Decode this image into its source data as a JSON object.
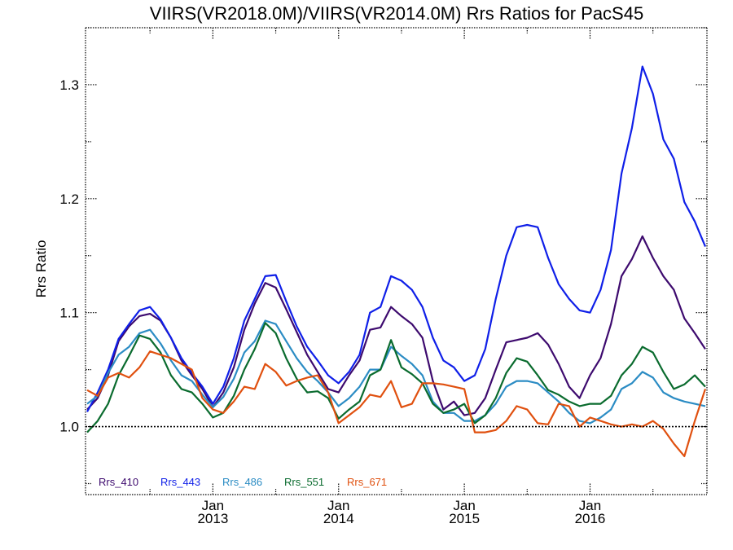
{
  "chart_data": {
    "type": "line",
    "title": "VIIRS(VR2018.0M)/VIIRS(VR2014.0M)  Rrs Ratios for PacS45",
    "xlabel": "",
    "ylabel": "Rrs Ratio",
    "xlim": [
      "2012-01",
      "2016-12"
    ],
    "ylim": [
      0.95,
      1.35
    ],
    "reference_line": 1.0,
    "grid": false,
    "legend_position": "bottom-left",
    "y_ticks": [
      1.0,
      1.1,
      1.2,
      1.3
    ],
    "y_tick_labels": [
      "1.0",
      "1.1",
      "1.2",
      "1.3"
    ],
    "x_ticks": [
      {
        "month": "2013-01",
        "line1": "Jan",
        "line2": "2013"
      },
      {
        "month": "2014-01",
        "line1": "Jan",
        "line2": "2014"
      },
      {
        "month": "2015-01",
        "line1": "Jan",
        "line2": "2015"
      },
      {
        "month": "2016-01",
        "line1": "Jan",
        "line2": "2016"
      }
    ],
    "x": [
      "2012-01",
      "2012-02",
      "2012-03",
      "2012-04",
      "2012-05",
      "2012-06",
      "2012-07",
      "2012-08",
      "2012-09",
      "2012-10",
      "2012-11",
      "2012-12",
      "2013-01",
      "2013-02",
      "2013-03",
      "2013-04",
      "2013-05",
      "2013-06",
      "2013-07",
      "2013-08",
      "2013-09",
      "2013-10",
      "2013-11",
      "2013-12",
      "2014-01",
      "2014-02",
      "2014-03",
      "2014-04",
      "2014-05",
      "2014-06",
      "2014-07",
      "2014-08",
      "2014-09",
      "2014-10",
      "2014-11",
      "2014-12",
      "2015-01",
      "2015-02",
      "2015-03",
      "2015-04",
      "2015-05",
      "2015-06",
      "2015-07",
      "2015-08",
      "2015-09",
      "2015-10",
      "2015-11",
      "2015-12",
      "2016-01",
      "2016-02",
      "2016-03",
      "2016-04",
      "2016-05",
      "2016-06",
      "2016-07",
      "2016-08",
      "2016-09",
      "2016-10",
      "2016-11",
      "2016-12"
    ],
    "series": [
      {
        "name": "Rrs_410",
        "color": "#3d0a6e",
        "values": [
          1.015,
          1.025,
          1.045,
          1.075,
          1.088,
          1.097,
          1.099,
          1.093,
          1.078,
          1.058,
          1.045,
          1.033,
          1.017,
          1.03,
          1.052,
          1.085,
          1.108,
          1.126,
          1.122,
          1.103,
          1.083,
          1.063,
          1.048,
          1.033,
          1.03,
          1.045,
          1.058,
          1.085,
          1.087,
          1.105,
          1.097,
          1.09,
          1.078,
          1.04,
          1.015,
          1.022,
          1.01,
          1.012,
          1.025,
          1.05,
          1.074,
          1.076,
          1.078,
          1.082,
          1.072,
          1.055,
          1.035,
          1.025,
          1.045,
          1.06,
          1.09,
          1.132,
          1.147,
          1.167,
          1.148,
          1.132,
          1.12,
          1.095,
          1.082,
          1.068
        ]
      },
      {
        "name": "Rrs_443",
        "color": "#0f1fe8",
        "values": [
          1.013,
          1.03,
          1.05,
          1.077,
          1.09,
          1.102,
          1.105,
          1.094,
          1.078,
          1.06,
          1.047,
          1.035,
          1.02,
          1.035,
          1.06,
          1.093,
          1.112,
          1.132,
          1.133,
          1.11,
          1.088,
          1.07,
          1.058,
          1.045,
          1.038,
          1.048,
          1.063,
          1.1,
          1.105,
          1.132,
          1.128,
          1.12,
          1.105,
          1.078,
          1.058,
          1.052,
          1.04,
          1.045,
          1.068,
          1.112,
          1.15,
          1.175,
          1.177,
          1.175,
          1.148,
          1.125,
          1.112,
          1.102,
          1.1,
          1.12,
          1.155,
          1.222,
          1.262,
          1.316,
          1.292,
          1.252,
          1.235,
          1.197,
          1.18,
          1.158
        ]
      },
      {
        "name": "Rrs_486",
        "color": "#2b8cc4",
        "values": [
          1.02,
          1.027,
          1.047,
          1.063,
          1.07,
          1.082,
          1.085,
          1.073,
          1.058,
          1.045,
          1.04,
          1.028,
          1.017,
          1.026,
          1.042,
          1.065,
          1.075,
          1.093,
          1.09,
          1.075,
          1.06,
          1.048,
          1.04,
          1.03,
          1.018,
          1.025,
          1.035,
          1.05,
          1.05,
          1.07,
          1.062,
          1.055,
          1.045,
          1.022,
          1.012,
          1.012,
          1.005,
          1.005,
          1.01,
          1.02,
          1.035,
          1.04,
          1.04,
          1.038,
          1.03,
          1.022,
          1.012,
          1.005,
          1.003,
          1.008,
          1.015,
          1.033,
          1.038,
          1.048,
          1.043,
          1.03,
          1.025,
          1.022,
          1.02,
          1.018
        ]
      },
      {
        "name": "Rrs_551",
        "color": "#0a6b2e",
        "values": [
          0.995,
          1.005,
          1.02,
          1.045,
          1.062,
          1.08,
          1.077,
          1.065,
          1.045,
          1.033,
          1.03,
          1.02,
          1.008,
          1.012,
          1.027,
          1.05,
          1.068,
          1.091,
          1.082,
          1.06,
          1.042,
          1.03,
          1.031,
          1.025,
          1.007,
          1.015,
          1.022,
          1.045,
          1.05,
          1.076,
          1.052,
          1.046,
          1.038,
          1.02,
          1.012,
          1.015,
          1.02,
          1.003,
          1.01,
          1.025,
          1.047,
          1.06,
          1.057,
          1.045,
          1.032,
          1.028,
          1.022,
          1.018,
          1.02,
          1.02,
          1.027,
          1.045,
          1.055,
          1.07,
          1.065,
          1.048,
          1.033,
          1.037,
          1.045,
          1.035
        ]
      },
      {
        "name": "Rrs_671",
        "color": "#e0500f",
        "values": [
          1.032,
          1.027,
          1.043,
          1.047,
          1.043,
          1.052,
          1.066,
          1.063,
          1.06,
          1.055,
          1.05,
          1.025,
          1.015,
          1.012,
          1.022,
          1.035,
          1.033,
          1.055,
          1.048,
          1.036,
          1.04,
          1.043,
          1.045,
          1.03,
          1.003,
          1.01,
          1.017,
          1.028,
          1.026,
          1.04,
          1.017,
          1.02,
          1.038,
          1.038,
          1.037,
          1.035,
          1.033,
          0.995,
          0.995,
          0.997,
          1.005,
          1.018,
          1.015,
          1.003,
          1.002,
          1.02,
          1.018,
          1.0,
          1.008,
          1.005,
          1.002,
          1.0,
          1.002,
          1.0,
          1.005,
          0.998,
          0.985,
          0.974,
          1.005,
          1.033
        ]
      }
    ]
  }
}
